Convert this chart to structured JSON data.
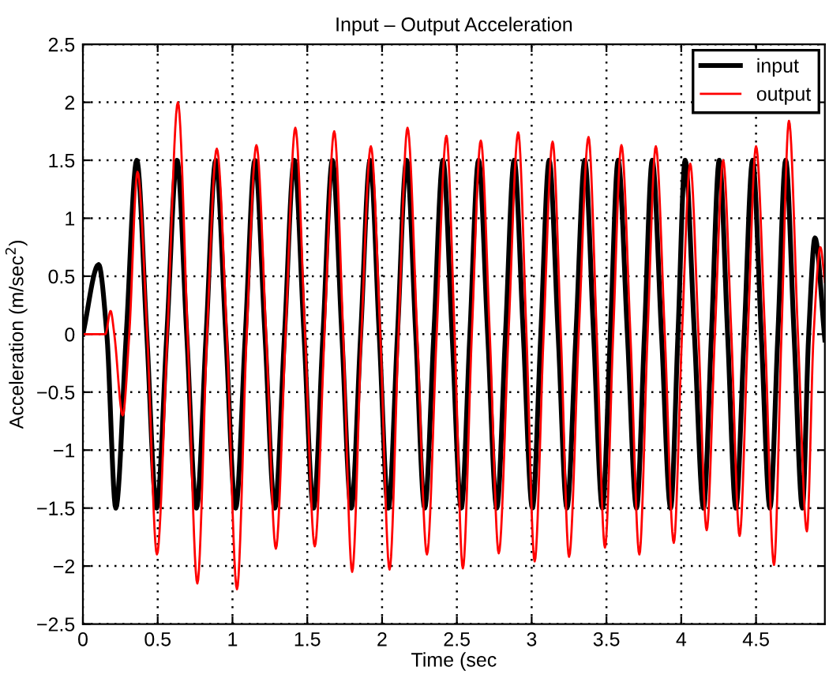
{
  "chart_data": {
    "type": "line",
    "title": "Input – Output Acceleration",
    "xlabel": "Time (sec",
    "ylabel": "Acceleration (m/sec$^{2}$)",
    "xlim": [
      0,
      4.96
    ],
    "ylim": [
      -2.5,
      2.5
    ],
    "xticks": [
      0,
      0.5,
      1,
      1.5,
      2,
      2.5,
      3,
      3.5,
      4,
      4.5
    ],
    "yticks": [
      {
        "value": -2.5,
        "label": "−2.5"
      },
      {
        "value": -2,
        "label": "−2"
      },
      {
        "value": -1.5,
        "label": "−1.5"
      },
      {
        "value": -1,
        "label": "−1"
      },
      {
        "value": -0.5,
        "label": "−0.5"
      },
      0,
      0.5,
      1,
      1.5,
      2,
      2.5
    ],
    "grid": true,
    "legend": "top right",
    "line_style": "solid",
    "series": [
      {
        "name": "input",
        "color": "#000000",
        "x": [
          0,
          0.105,
          0.16,
          0.22,
          0.29,
          0.36,
          0.427,
          0.493,
          0.561,
          0.629,
          0.694,
          0.759,
          0.824,
          0.888,
          0.955,
          1.021,
          1.086,
          1.15,
          1.217,
          1.283,
          1.348,
          1.413,
          1.478,
          1.542,
          1.605,
          1.668,
          1.731,
          1.794,
          1.857,
          1.92,
          1.981,
          2.042,
          2.103,
          2.164,
          2.225,
          2.285,
          2.346,
          2.407,
          2.468,
          2.529,
          2.587,
          2.645,
          2.706,
          2.767,
          2.825,
          2.883,
          2.944,
          3.005,
          3.061,
          3.117,
          3.177,
          3.236,
          3.296,
          3.355,
          3.414,
          3.473,
          3.526,
          3.578,
          3.64,
          3.701,
          3.754,
          3.806,
          3.868,
          3.929,
          3.978,
          4.026,
          4.088,
          4.149,
          4.202,
          4.254,
          4.31,
          4.365,
          4.421,
          4.477,
          4.535,
          4.593,
          4.646,
          4.698,
          4.754,
          4.81,
          4.852,
          4.894,
          4.96
        ],
        "values": [
          0,
          0.6,
          0,
          -1.5,
          0,
          1.5,
          0,
          -1.5,
          0,
          1.5,
          0,
          -1.5,
          0,
          1.5,
          0,
          -1.5,
          0,
          1.5,
          0,
          -1.5,
          0,
          1.5,
          0,
          -1.5,
          0,
          1.5,
          0,
          -1.5,
          0,
          1.5,
          0,
          -1.5,
          0,
          1.5,
          0,
          -1.5,
          0,
          1.5,
          0,
          -1.5,
          0,
          1.5,
          0,
          -1.5,
          0,
          1.5,
          0,
          -1.5,
          0,
          1.5,
          0,
          -1.5,
          0,
          1.5,
          0,
          -1.5,
          0,
          1.5,
          0,
          -1.5,
          0,
          1.5,
          0,
          -1.5,
          0,
          1.5,
          0,
          -1.5,
          0,
          1.5,
          0,
          -1.5,
          0,
          1.5,
          0,
          -1.5,
          0,
          1.5,
          0,
          -1.5,
          0,
          0.83,
          -0.05
        ]
      },
      {
        "name": "output",
        "color": "#ff0000",
        "x": [
          0,
          0.15,
          0.185,
          0.21,
          0.266,
          0.31,
          0.365,
          0.43,
          0.495,
          0.565,
          0.635,
          0.7,
          0.765,
          0.83,
          0.895,
          0.962,
          1.03,
          1.095,
          1.16,
          1.225,
          1.29,
          1.355,
          1.42,
          1.485,
          1.55,
          1.615,
          1.68,
          1.74,
          1.8,
          1.862,
          1.925,
          1.988,
          2.05,
          2.11,
          2.17,
          2.235,
          2.3,
          2.365,
          2.43,
          2.485,
          2.54,
          2.6,
          2.66,
          2.72,
          2.78,
          2.845,
          2.91,
          2.965,
          3.02,
          3.08,
          3.14,
          3.195,
          3.25,
          3.315,
          3.38,
          3.435,
          3.49,
          3.545,
          3.6,
          3.66,
          3.72,
          3.775,
          3.83,
          3.89,
          3.95,
          4.005,
          4.06,
          4.115,
          4.17,
          4.225,
          4.28,
          4.335,
          4.39,
          4.445,
          4.5,
          4.56,
          4.62,
          4.67,
          4.72,
          4.78,
          4.84,
          4.885,
          4.93,
          4.96
        ],
        "values": [
          0,
          0,
          0.2,
          0,
          -0.7,
          0,
          1.4,
          0,
          -1.9,
          0,
          2.0,
          0,
          -2.15,
          0,
          1.6,
          0,
          -2.2,
          0,
          1.63,
          0,
          -1.85,
          0,
          1.78,
          0,
          -1.83,
          0,
          1.75,
          0,
          -2.05,
          0,
          1.62,
          0,
          -2.03,
          0,
          1.78,
          0,
          -1.9,
          0,
          1.71,
          0,
          -2.02,
          0,
          1.67,
          0,
          -1.89,
          0,
          1.74,
          0,
          -1.96,
          0,
          1.66,
          0,
          -1.92,
          0,
          1.7,
          0,
          -1.84,
          0,
          1.63,
          0,
          -1.9,
          0,
          1.62,
          0,
          -1.8,
          0,
          1.47,
          0,
          -1.69,
          0,
          1.5,
          0,
          -1.74,
          0,
          1.62,
          0,
          -1.99,
          0,
          1.84,
          0,
          -1.7,
          0,
          0.75,
          0.45
        ]
      }
    ]
  }
}
